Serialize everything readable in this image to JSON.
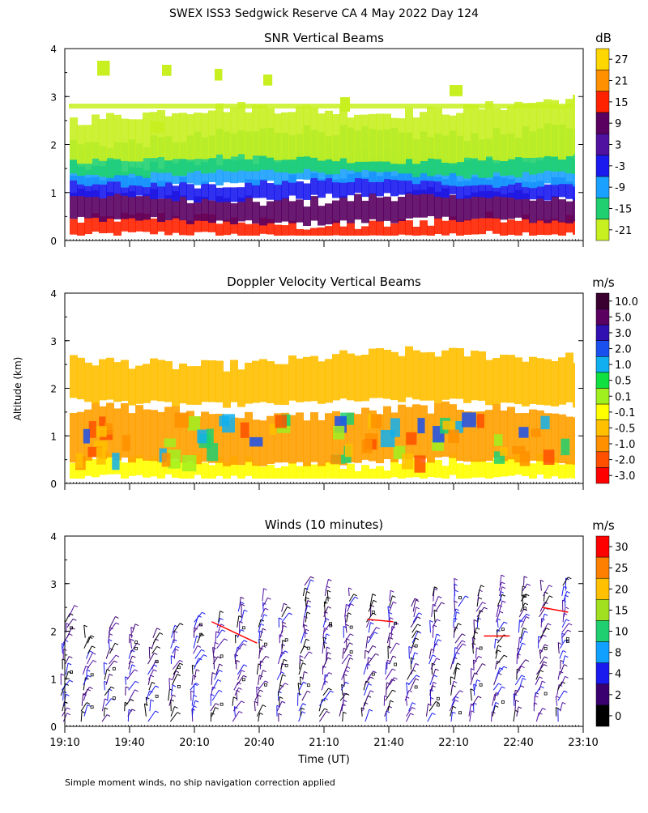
{
  "page": {
    "title": "SWEX ISS3 Sedgwick Reserve CA   4 May 2022 Day 124",
    "footnote": "Simple moment winds, no ship navigation correction applied"
  },
  "chart_data": [
    {
      "type": "heatmap",
      "title": "SNR Vertical Beams",
      "ylabel": "Altitude (km)",
      "xlabel": "Time (UT)",
      "xlim": [
        "19:10",
        "23:10"
      ],
      "ylim": [
        0,
        4
      ],
      "yticks": [
        "0",
        "1",
        "2",
        "3",
        "4"
      ],
      "colorbar": {
        "unit": "dB",
        "labels": [
          "27",
          "21",
          "15",
          "9",
          "3",
          "-3",
          "-9",
          "-15",
          "-21"
        ],
        "colors": [
          "#ffd700",
          "#ff9000",
          "#ff2200",
          "#5a0060",
          "#5010a0",
          "#1a1aee",
          "#1aa0ff",
          "#20d070",
          "#c8f020"
        ]
      },
      "layers": [
        {
          "from_km": 0.1,
          "to_km": 0.4,
          "level": "15",
          "color": "#ff2200"
        },
        {
          "from_km": 0.4,
          "to_km": 0.9,
          "level": "9",
          "color": "#5a0060"
        },
        {
          "from_km": 0.9,
          "to_km": 1.3,
          "level": "-3",
          "color": "#1a1aee"
        },
        {
          "from_km": 1.2,
          "to_km": 1.6,
          "level": "-9",
          "color": "#1aa0ff"
        },
        {
          "from_km": 1.4,
          "to_km": 2.1,
          "level": "-15",
          "color": "#20d070"
        },
        {
          "from_km": 1.7,
          "to_km": 2.6,
          "level": "-21",
          "color": "#c8f020"
        }
      ]
    },
    {
      "type": "heatmap",
      "title": "Doppler Velocity Vertical Beams",
      "ylabel": "Altitude (km)",
      "xlabel": "Time (UT)",
      "xlim": [
        "19:10",
        "23:10"
      ],
      "ylim": [
        0,
        4
      ],
      "yticks": [
        "0",
        "1",
        "2",
        "3",
        "4"
      ],
      "colorbar": {
        "unit": "m/s",
        "labels": [
          "10.0",
          "5.0",
          "3.0",
          "2.0",
          "1.0",
          "0.5",
          "0.1",
          "-0.1",
          "-0.5",
          "-1.0",
          "-2.0",
          "-3.0"
        ],
        "colors": [
          "#3a0030",
          "#5a0060",
          "#3010b0",
          "#1a50ee",
          "#10b0f0",
          "#10e040",
          "#a0f020",
          "#ffff00",
          "#ffc000",
          "#ff9000",
          "#ff5000",
          "#ff0000"
        ]
      },
      "layers": [
        {
          "from_km": 0.1,
          "to_km": 0.45,
          "level": "-0.1",
          "color": "#ffff00"
        },
        {
          "from_km": 0.45,
          "to_km": 1.5,
          "level": "mixed -1.0 to 1.0",
          "color": "#ffa000"
        },
        {
          "from_km": 1.7,
          "to_km": 2.5,
          "level": "-0.5",
          "color": "#ffc000"
        }
      ]
    },
    {
      "type": "scatter",
      "subtype": "wind-barbs",
      "title": "Winds (10 minutes)",
      "ylabel": "Altitude (km)",
      "xlabel": "Time (UT)",
      "xticks": [
        "19:10",
        "19:40",
        "20:10",
        "20:40",
        "21:10",
        "21:40",
        "22:10",
        "22:40",
        "23:10"
      ],
      "ylim": [
        0,
        4
      ],
      "yticks": [
        "0",
        "1",
        "2",
        "3",
        "4"
      ],
      "colorbar": {
        "unit": "m/s",
        "labels": [
          "30",
          "25",
          "20",
          "15",
          "10",
          "8",
          "4",
          "2",
          "0"
        ],
        "colors": [
          "#ff0000",
          "#ff8000",
          "#ffc000",
          "#a0e020",
          "#20d070",
          "#10a0ff",
          "#1a1aee",
          "#3a0070",
          "#000000"
        ]
      },
      "profile_hours": [
        19.17,
        19.33,
        19.5,
        19.67,
        19.83,
        20.0,
        20.17,
        20.33,
        20.5,
        20.67,
        20.83,
        21.0,
        21.17,
        21.33,
        21.5,
        21.67,
        21.83,
        22.0,
        22.17,
        22.33,
        22.5,
        22.67,
        22.83,
        23.0
      ],
      "profile_tops_km": [
        2.4,
        1.9,
        2.1,
        2.0,
        1.9,
        2.0,
        2.3,
        2.2,
        2.6,
        2.7,
        2.5,
        3.0,
        2.9,
        2.8,
        2.6,
        2.7,
        2.6,
        2.8,
        2.9,
        2.8,
        3.0,
        3.0,
        2.9,
        3.0
      ],
      "strong_segments": [
        {
          "hour_from": 20.3,
          "hour_to": 20.65,
          "km_from": 2.2,
          "km_to": 1.75,
          "speed": "30"
        },
        {
          "hour_from": 21.5,
          "hour_to": 21.7,
          "km_from": 2.25,
          "km_to": 2.2,
          "speed": "30"
        },
        {
          "hour_from": 22.4,
          "hour_to": 22.6,
          "km_from": 1.9,
          "km_to": 1.9,
          "speed": "30"
        },
        {
          "hour_from": 22.85,
          "hour_to": 23.05,
          "km_from": 2.5,
          "km_to": 2.4,
          "speed": "30"
        }
      ]
    }
  ]
}
